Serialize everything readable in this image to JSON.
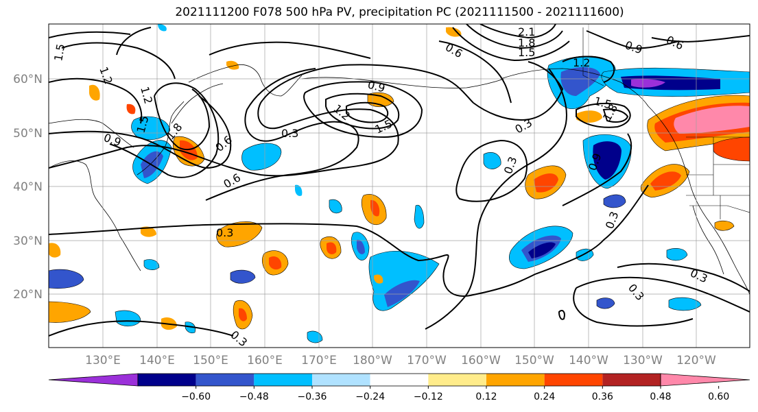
{
  "title": "2021111200 F078 500 hPa PV, precipitation PC (2021111500 - 2021111600)",
  "map": {
    "lat_labels": [
      "60°N",
      "50°N",
      "40°N",
      "30°N",
      "20°N"
    ],
    "lon_labels": [
      "130°E",
      "140°E",
      "150°E",
      "160°E",
      "170°E",
      "180°W",
      "170°W",
      "160°W",
      "150°W",
      "140°W",
      "130°W",
      "120°W"
    ],
    "pv_contour_labels": [
      "1.5",
      "1.2",
      "1.2",
      "0.9",
      "1.5",
      "1.8",
      "0.6",
      "0.6",
      "0.3",
      "0.9",
      "1.2",
      "1.5",
      "2.1",
      "1.8",
      "1.5",
      "0.6",
      "1.2",
      "1.5",
      "1.8",
      "0.9",
      "0.6",
      "0.3",
      "0.3",
      "0.9",
      "0.3",
      "0.3",
      "0.3",
      "0.3",
      "0.3"
    ]
  },
  "colorbar": {
    "tick_labels": [
      "−0.60",
      "−0.48",
      "−0.36",
      "−0.24",
      "−0.12",
      "0.12",
      "0.24",
      "0.36",
      "0.48",
      "0.60"
    ],
    "colors": [
      "#9b30d9",
      "#00008b",
      "#3355cc",
      "#00bfff",
      "#b0e2ff",
      "#ffffff",
      "#ffec8b",
      "#ffa500",
      "#ff4500",
      "#b22222",
      "#ff88aa"
    ]
  }
}
